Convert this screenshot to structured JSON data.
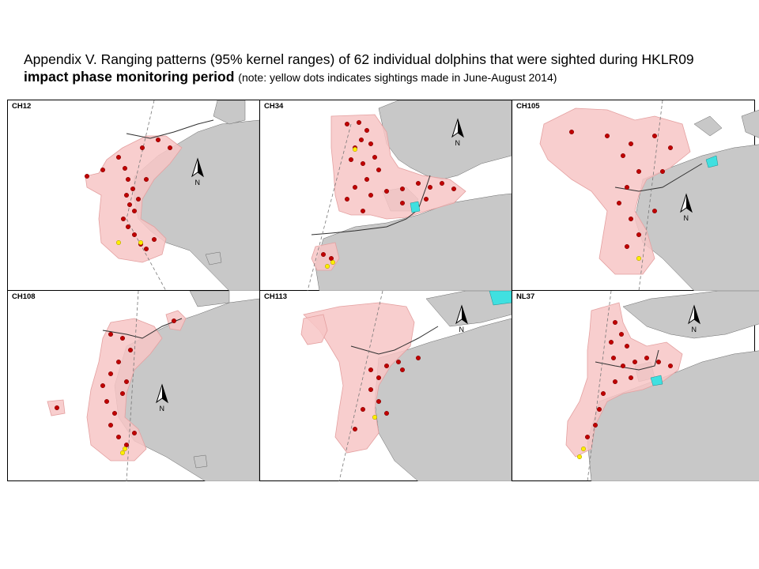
{
  "caption": {
    "line1": "Appendix V.  Ranging patterns (95% kernel ranges) of 62 individual dolphins that were sighted during HKLR09",
    "line2_main": "impact phase monitoring period",
    "line2_note": "(note: yellow dots indicates sightings made in June-August 2014)"
  },
  "colors": {
    "land": "#c8c8c8",
    "range": "#f7c6c6",
    "range_edge": "#e4a0a0",
    "sighting": "#c00000",
    "sighting_recent": "#ffee00",
    "reclamation": "#40e0e0",
    "route": "#2f2f2f"
  },
  "panels": [
    {
      "label": "CH12",
      "north": "N"
    },
    {
      "label": "CH34",
      "north": "N"
    },
    {
      "label": "CH105",
      "north": "N"
    },
    {
      "label": "CH108",
      "north": "N"
    },
    {
      "label": "CH113",
      "north": "N"
    },
    {
      "label": "NL37",
      "north": "N"
    }
  ]
}
